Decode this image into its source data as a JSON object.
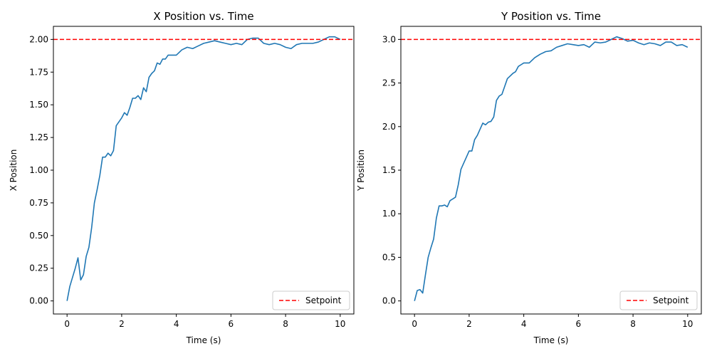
{
  "chart_data": [
    {
      "type": "line",
      "title": "X Position vs. Time",
      "xlabel": "Time (s)",
      "ylabel": "X Position",
      "xlim": [
        -0.5,
        10.5
      ],
      "ylim": [
        -0.1,
        2.1
      ],
      "xticks": [
        0,
        2,
        4,
        6,
        8,
        10
      ],
      "yticks": [
        0.0,
        0.25,
        0.5,
        0.75,
        1.0,
        1.25,
        1.5,
        1.75,
        2.0
      ],
      "ytick_labels": [
        "0.00",
        "0.25",
        "0.50",
        "0.75",
        "1.00",
        "1.25",
        "1.50",
        "1.75",
        "2.00"
      ],
      "grid": false,
      "legend_position": "lower-right",
      "setpoint": {
        "name": "Setpoint",
        "value": 2.0,
        "color": "#ff0000"
      },
      "series": [
        {
          "color": "#1f77b4",
          "x": [
            0,
            0.1,
            0.2,
            0.3,
            0.4,
            0.5,
            0.6,
            0.7,
            0.8,
            0.9,
            1.0,
            1.1,
            1.2,
            1.3,
            1.4,
            1.5,
            1.6,
            1.7,
            1.8,
            1.9,
            2.0,
            2.1,
            2.2,
            2.3,
            2.4,
            2.5,
            2.6,
            2.7,
            2.8,
            2.9,
            3.0,
            3.1,
            3.2,
            3.3,
            3.4,
            3.5,
            3.6,
            3.7,
            3.8,
            3.9,
            4.0,
            4.2,
            4.4,
            4.6,
            4.8,
            5.0,
            5.2,
            5.4,
            5.6,
            5.8,
            6.0,
            6.2,
            6.4,
            6.6,
            6.8,
            7.0,
            7.2,
            7.4,
            7.6,
            7.8,
            8.0,
            8.2,
            8.4,
            8.6,
            8.8,
            9.0,
            9.2,
            9.4,
            9.6,
            9.8,
            10.0
          ],
          "y": [
            0.0,
            0.11,
            0.18,
            0.25,
            0.33,
            0.16,
            0.2,
            0.34,
            0.41,
            0.56,
            0.75,
            0.85,
            0.96,
            1.1,
            1.1,
            1.13,
            1.11,
            1.15,
            1.34,
            1.37,
            1.4,
            1.44,
            1.42,
            1.48,
            1.55,
            1.55,
            1.57,
            1.54,
            1.63,
            1.6,
            1.71,
            1.74,
            1.76,
            1.82,
            1.81,
            1.85,
            1.85,
            1.88,
            1.88,
            1.88,
            1.88,
            1.92,
            1.94,
            1.93,
            1.95,
            1.97,
            1.98,
            1.99,
            1.98,
            1.97,
            1.96,
            1.97,
            1.96,
            2.0,
            2.01,
            2.01,
            1.97,
            1.96,
            1.97,
            1.96,
            1.94,
            1.93,
            1.96,
            1.97,
            1.97,
            1.97,
            1.98,
            2.0,
            2.02,
            2.02,
            2.0
          ]
        }
      ]
    },
    {
      "type": "line",
      "title": "Y Position vs. Time",
      "xlabel": "Time (s)",
      "ylabel": "Y Position",
      "xlim": [
        -0.5,
        10.5
      ],
      "ylim": [
        -0.15,
        3.15
      ],
      "xticks": [
        0,
        2,
        4,
        6,
        8,
        10
      ],
      "yticks": [
        0.0,
        0.5,
        1.0,
        1.5,
        2.0,
        2.5,
        3.0
      ],
      "ytick_labels": [
        "0.0",
        "0.5",
        "1.0",
        "1.5",
        "2.0",
        "2.5",
        "3.0"
      ],
      "grid": false,
      "legend_position": "lower-right",
      "setpoint": {
        "name": "Setpoint",
        "value": 3.0,
        "color": "#ff0000"
      },
      "series": [
        {
          "color": "#1f77b4",
          "x": [
            0,
            0.1,
            0.2,
            0.3,
            0.4,
            0.5,
            0.6,
            0.7,
            0.8,
            0.9,
            1.0,
            1.1,
            1.2,
            1.3,
            1.4,
            1.5,
            1.6,
            1.7,
            1.8,
            1.9,
            2.0,
            2.1,
            2.2,
            2.3,
            2.4,
            2.5,
            2.6,
            2.7,
            2.8,
            2.9,
            3.0,
            3.1,
            3.2,
            3.3,
            3.4,
            3.5,
            3.6,
            3.7,
            3.8,
            3.9,
            4.0,
            4.2,
            4.4,
            4.6,
            4.8,
            5.0,
            5.2,
            5.4,
            5.6,
            5.8,
            6.0,
            6.2,
            6.4,
            6.6,
            6.8,
            7.0,
            7.2,
            7.4,
            7.6,
            7.8,
            8.0,
            8.2,
            8.4,
            8.6,
            8.8,
            9.0,
            9.2,
            9.4,
            9.6,
            9.8,
            10.0
          ],
          "y": [
            0.0,
            0.12,
            0.13,
            0.09,
            0.3,
            0.5,
            0.61,
            0.71,
            0.95,
            1.09,
            1.09,
            1.1,
            1.08,
            1.15,
            1.17,
            1.19,
            1.33,
            1.51,
            1.58,
            1.65,
            1.72,
            1.72,
            1.85,
            1.9,
            1.97,
            2.04,
            2.02,
            2.05,
            2.06,
            2.11,
            2.3,
            2.35,
            2.37,
            2.46,
            2.55,
            2.58,
            2.61,
            2.63,
            2.69,
            2.71,
            2.73,
            2.73,
            2.79,
            2.83,
            2.86,
            2.87,
            2.91,
            2.93,
            2.95,
            2.94,
            2.93,
            2.94,
            2.91,
            2.97,
            2.96,
            2.97,
            3.0,
            3.03,
            3.01,
            2.98,
            2.99,
            2.96,
            2.94,
            2.96,
            2.95,
            2.93,
            2.97,
            2.97,
            2.93,
            2.94,
            2.91
          ]
        }
      ]
    }
  ]
}
